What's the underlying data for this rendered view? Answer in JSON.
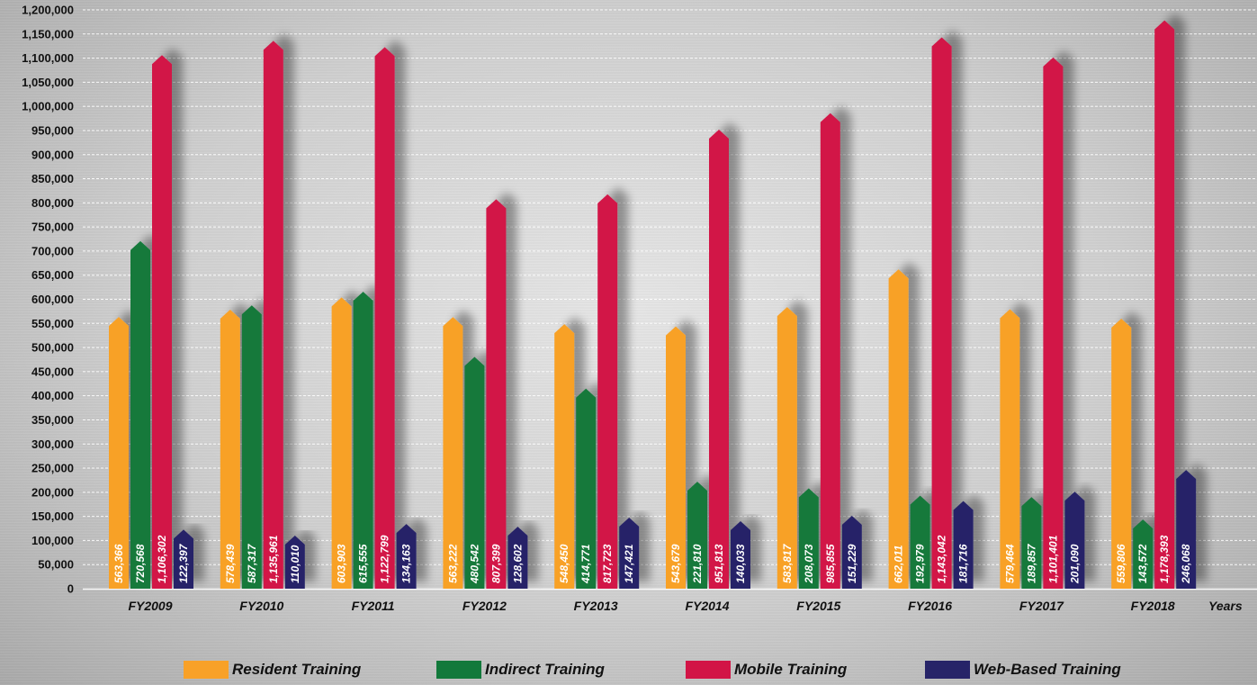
{
  "chart_data": {
    "type": "bar",
    "categories": [
      "FY2009",
      "FY2010",
      "FY2011",
      "FY2012",
      "FY2013",
      "FY2014",
      "FY2015",
      "FY2016",
      "FY2017",
      "FY2018"
    ],
    "x_axis_end_label": "Years",
    "ylim": [
      0,
      1200000
    ],
    "y_ticks": [
      "0",
      "50,000",
      "100,000",
      "150,000",
      "200,000",
      "250,000",
      "300,000",
      "350,000",
      "400,000",
      "450,000",
      "500,000",
      "550,000",
      "600,000",
      "650,000",
      "700,000",
      "750,000",
      "800,000",
      "850,000",
      "900,000",
      "950,000",
      "1,000,000",
      "1,050,000",
      "1,100,000",
      "1,150,000",
      "1,200,000"
    ],
    "grid": true,
    "legend_placement": "bottom",
    "series": [
      {
        "name": "Resident Training",
        "color": "#f8a128",
        "values": [
          563366,
          578439,
          603903,
          563222,
          548450,
          543679,
          583817,
          662011,
          579464,
          559806
        ],
        "labels": [
          "563,366",
          "578,439",
          "603,903",
          "563,222",
          "548,450",
          "543,679",
          "583,817",
          "662,011",
          "579,464",
          "559,806"
        ]
      },
      {
        "name": "Indirect Training",
        "color": "#12793b",
        "values": [
          720568,
          587317,
          615555,
          480542,
          414771,
          221810,
          208073,
          192979,
          189857,
          143572
        ],
        "labels": [
          "720,568",
          "587,317",
          "615,555",
          "480,542",
          "414,771",
          "221,810",
          "208,073",
          "192,979",
          "189,857",
          "143,572"
        ]
      },
      {
        "name": "Mobile Training",
        "color": "#d21446",
        "values": [
          1106302,
          1135961,
          1122799,
          807399,
          817723,
          951813,
          985855,
          1143042,
          1101401,
          1178393
        ],
        "labels": [
          "1,106,302",
          "1,135,961",
          "1,122,799",
          "807,399",
          "817,723",
          "951,813",
          "985,855",
          "1,143,042",
          "1,101,401",
          "1,178,393"
        ]
      },
      {
        "name": "Web-Based Training",
        "color": "#272468",
        "values": [
          122397,
          110010,
          134163,
          128602,
          147421,
          140033,
          151229,
          181716,
          201090,
          246068
        ],
        "labels": [
          "122,397",
          "110,010",
          "134,163",
          "128,602",
          "147,421",
          "140,033",
          "151,229",
          "181,716",
          "201,090",
          "246,068"
        ]
      }
    ]
  }
}
